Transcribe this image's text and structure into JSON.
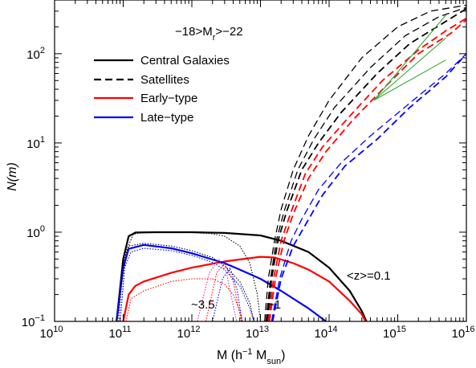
{
  "chart_data": {
    "type": "line",
    "title": "",
    "header_text": {
      "main": "−18>M",
      "sub": "r",
      "tail": ">−22"
    },
    "xlabel": {
      "main": "M (h",
      "sup": "−1",
      "mid": " M",
      "sub": "sun",
      "tail": ")"
    },
    "ylabel": {
      "main": "N",
      "paren": "(m)"
    },
    "x_scale": "log",
    "y_scale": "log",
    "xlim": [
      10000000000.0,
      1e+16
    ],
    "ylim": [
      0.1,
      400
    ],
    "x_ticks": [
      {
        "value": 10000000000.0,
        "base": "10",
        "exp": "10"
      },
      {
        "value": 100000000000.0,
        "base": "10",
        "exp": "11"
      },
      {
        "value": 1000000000000.0,
        "base": "10",
        "exp": "12"
      },
      {
        "value": 10000000000000.0,
        "base": "10",
        "exp": "13"
      },
      {
        "value": 100000000000000.0,
        "base": "10",
        "exp": "14"
      },
      {
        "value": 1000000000000000.0,
        "base": "10",
        "exp": "15"
      },
      {
        "value": 1e+16,
        "base": "10",
        "exp": "16"
      }
    ],
    "y_ticks": [
      {
        "value": 0.1,
        "base": "10",
        "exp": "−1"
      },
      {
        "value": 1,
        "base": "10",
        "exp": "0"
      },
      {
        "value": 10,
        "base": "10",
        "exp": "1"
      },
      {
        "value": 100,
        "base": "10",
        "exp": "2"
      }
    ],
    "grid": false,
    "legend_position": "top-left",
    "legend": [
      {
        "label": "Central Galaxies",
        "color": "#000000",
        "style": "solid"
      },
      {
        "label": "Satellites",
        "color": "#000000",
        "style": "dashed"
      },
      {
        "label": "Early−type",
        "color": "#ff0000",
        "style": "solid"
      },
      {
        "label": "Late−type",
        "color": "#0000ff",
        "style": "solid"
      }
    ],
    "annotations": [
      {
        "text": "<z>=0.1",
        "x": 250000000000000.0,
        "y": 0.33
      },
      {
        "text": "~3.5",
        "x": 320000000000.0,
        "y": 0.14
      },
      {
        "text": "~1",
        "x": 12500000000000.0,
        "y": 0.14
      }
    ],
    "colors": {
      "central": "#000000",
      "early": "#ff0000",
      "late": "#0000ff",
      "green": "#33aa33",
      "thin_magenta": "#cc3399"
    },
    "series": [
      {
        "type": "solid",
        "color": "#000000",
        "points": [
          [
            80000000000.0,
            0.1
          ],
          [
            100000000000.0,
            0.5
          ],
          [
            120000000000.0,
            0.9
          ],
          [
            150000000000.0,
            0.99
          ],
          [
            300000000000.0,
            1.0
          ],
          [
            1000000000000.0,
            1.0
          ],
          [
            3000000000000.0,
            0.98
          ],
          [
            10000000000000.0,
            0.92
          ],
          [
            20000000000000.0,
            0.8
          ],
          [
            50000000000000.0,
            0.6
          ],
          [
            100000000000000.0,
            0.4
          ],
          [
            200000000000000.0,
            0.22
          ],
          [
            300000000000000.0,
            0.13
          ],
          [
            350000000000000.0,
            0.1
          ]
        ]
      },
      {
        "type": "solid",
        "color": "#ff0000",
        "points": [
          [
            100000000000.0,
            0.1
          ],
          [
            120000000000.0,
            0.2
          ],
          [
            150000000000.0,
            0.25
          ],
          [
            200000000000.0,
            0.28
          ],
          [
            500000000000.0,
            0.35
          ],
          [
            1000000000000.0,
            0.4
          ],
          [
            3000000000000.0,
            0.47
          ],
          [
            10000000000000.0,
            0.53
          ],
          [
            16000000000000.0,
            0.52
          ],
          [
            30000000000000.0,
            0.45
          ],
          [
            50000000000000.0,
            0.38
          ],
          [
            100000000000000.0,
            0.28
          ],
          [
            200000000000000.0,
            0.17
          ],
          [
            300000000000000.0,
            0.12
          ],
          [
            340000000000000.0,
            0.1
          ]
        ]
      },
      {
        "type": "solid",
        "color": "#0000ff",
        "points": [
          [
            80000000000.0,
            0.1
          ],
          [
            100000000000.0,
            0.4
          ],
          [
            120000000000.0,
            0.65
          ],
          [
            200000000000.0,
            0.72
          ],
          [
            500000000000.0,
            0.66
          ],
          [
            1000000000000.0,
            0.58
          ],
          [
            3000000000000.0,
            0.45
          ],
          [
            5000000000000.0,
            0.38
          ],
          [
            10000000000000.0,
            0.3
          ],
          [
            20000000000000.0,
            0.22
          ],
          [
            50000000000000.0,
            0.14
          ],
          [
            90000000000000.0,
            0.1
          ]
        ]
      },
      {
        "type": "dotted",
        "color": "#000000",
        "points": [
          [
            90000000000.0,
            0.1
          ],
          [
            110000000000.0,
            0.6
          ],
          [
            140000000000.0,
            0.95
          ],
          [
            200000000000.0,
            0.99
          ],
          [
            500000000000.0,
            1.0
          ],
          [
            1000000000000.0,
            0.99
          ],
          [
            2000000000000.0,
            0.96
          ],
          [
            3000000000000.0,
            0.9
          ],
          [
            5000000000000.0,
            0.7
          ],
          [
            7000000000000.0,
            0.45
          ],
          [
            9000000000000.0,
            0.2
          ],
          [
            10000000000000.0,
            0.1
          ]
        ]
      },
      {
        "type": "dotted",
        "color": "#000000",
        "points": [
          [
            85000000000.0,
            0.1
          ],
          [
            100000000000.0,
            0.45
          ],
          [
            120000000000.0,
            0.7
          ],
          [
            200000000000.0,
            0.75
          ],
          [
            500000000000.0,
            0.7
          ],
          [
            1000000000000.0,
            0.62
          ],
          [
            2000000000000.0,
            0.52
          ],
          [
            3000000000000.0,
            0.42
          ],
          [
            5000000000000.0,
            0.28
          ],
          [
            7000000000000.0,
            0.16
          ],
          [
            8000000000000.0,
            0.1
          ]
        ]
      },
      {
        "type": "dotted",
        "color": "#0000ff",
        "points": [
          [
            90000000000.0,
            0.1
          ],
          [
            105000000000.0,
            0.4
          ],
          [
            130000000000.0,
            0.6
          ],
          [
            200000000000.0,
            0.66
          ],
          [
            500000000000.0,
            0.62
          ],
          [
            1000000000000.0,
            0.55
          ],
          [
            2000000000000.0,
            0.46
          ],
          [
            3000000000000.0,
            0.38
          ],
          [
            5000000000000.0,
            0.25
          ],
          [
            7000000000000.0,
            0.14
          ],
          [
            8000000000000.0,
            0.1
          ]
        ]
      },
      {
        "type": "dotted",
        "color": "#ff0000",
        "points": [
          [
            110000000000.0,
            0.1
          ],
          [
            130000000000.0,
            0.18
          ],
          [
            200000000000.0,
            0.22
          ],
          [
            500000000000.0,
            0.28
          ],
          [
            1000000000000.0,
            0.3
          ],
          [
            2000000000000.0,
            0.3
          ],
          [
            3000000000000.0,
            0.26
          ],
          [
            4000000000000.0,
            0.2
          ],
          [
            5000000000000.0,
            0.13
          ],
          [
            5500000000000.0,
            0.1
          ]
        ]
      },
      {
        "type": "dotted",
        "color": "#cc3399",
        "points": [
          [
            1200000000000.0,
            0.1
          ],
          [
            1800000000000.0,
            0.35
          ],
          [
            2500000000000.0,
            0.5
          ],
          [
            3200000000000.0,
            0.35
          ],
          [
            4000000000000.0,
            0.15
          ],
          [
            4500000000000.0,
            0.1
          ]
        ]
      },
      {
        "type": "dotted",
        "color": "#ff0000",
        "points": [
          [
            1600000000000.0,
            0.1
          ],
          [
            2300000000000.0,
            0.35
          ],
          [
            3000000000000.0,
            0.45
          ],
          [
            4000000000000.0,
            0.28
          ],
          [
            5000000000000.0,
            0.12
          ],
          [
            5300000000000.0,
            0.1
          ]
        ]
      },
      {
        "type": "dotted",
        "color": "#0000ff",
        "points": [
          [
            2000000000000.0,
            0.1
          ],
          [
            2800000000000.0,
            0.3
          ],
          [
            3600000000000.0,
            0.4
          ],
          [
            4600000000000.0,
            0.22
          ],
          [
            5400000000000.0,
            0.1
          ]
        ]
      },
      {
        "type": "dashed",
        "color": "#000000",
        "width": 1.3,
        "points": [
          [
            11500000000000.0,
            0.1
          ],
          [
            13000000000000.0,
            0.3
          ],
          [
            16000000000000.0,
            0.8
          ],
          [
            20000000000000.0,
            1.8
          ],
          [
            30000000000000.0,
            5
          ],
          [
            50000000000000.0,
            12
          ],
          [
            100000000000000.0,
            30
          ],
          [
            300000000000000.0,
            90
          ],
          [
            1000000000000000.0,
            200
          ],
          [
            3000000000000000.0,
            300
          ],
          [
            1e+16,
            350
          ]
        ]
      },
      {
        "type": "dashed",
        "color": "#000000",
        "width": 1.3,
        "points": [
          [
            12000000000000.0,
            0.1
          ],
          [
            14000000000000.0,
            0.3
          ],
          [
            17000000000000.0,
            0.8
          ],
          [
            22000000000000.0,
            1.7
          ],
          [
            35000000000000.0,
            5
          ],
          [
            60000000000000.0,
            11
          ],
          [
            120000000000000.0,
            25
          ],
          [
            400000000000000.0,
            70
          ],
          [
            1300000000000000.0,
            160
          ],
          [
            4000000000000000.0,
            260
          ],
          [
            1e+16,
            330
          ]
        ]
      },
      {
        "type": "dashed",
        "color": "#000000",
        "width": 1.8,
        "points": [
          [
            12500000000000.0,
            0.1
          ],
          [
            14500000000000.0,
            0.3
          ],
          [
            18000000000000.0,
            0.8
          ],
          [
            24000000000000.0,
            1.7
          ],
          [
            40000000000000.0,
            5
          ],
          [
            70000000000000.0,
            10
          ],
          [
            150000000000000.0,
            22
          ],
          [
            500000000000000.0,
            60
          ],
          [
            1500000000000000.0,
            130
          ],
          [
            5000000000000000.0,
            230
          ],
          [
            1e+16,
            320
          ]
        ]
      },
      {
        "type": "dashed",
        "color": "#ff0000",
        "width": 1.8,
        "points": [
          [
            13000000000000.0,
            0.1
          ],
          [
            15500000000000.0,
            0.3
          ],
          [
            20000000000000.0,
            0.8
          ],
          [
            28000000000000.0,
            1.7
          ],
          [
            45000000000000.0,
            4.5
          ],
          [
            80000000000000.0,
            9
          ],
          [
            200000000000000.0,
            20
          ],
          [
            600000000000000.0,
            50
          ],
          [
            2000000000000000.0,
            110
          ],
          [
            5000000000000000.0,
            180
          ],
          [
            1e+16,
            250
          ]
        ]
      },
      {
        "type": "dashed",
        "color": "#ff0000",
        "width": 1.8,
        "points": [
          [
            13500000000000.0,
            0.1
          ],
          [
            16500000000000.0,
            0.3
          ],
          [
            22000000000000.0,
            0.8
          ],
          [
            30000000000000.0,
            1.6
          ],
          [
            50000000000000.0,
            4
          ],
          [
            90000000000000.0,
            8
          ],
          [
            220000000000000.0,
            18
          ],
          [
            700000000000000.0,
            45
          ],
          [
            2000000000000000.0,
            100
          ],
          [
            6000000000000000.0,
            170
          ],
          [
            1e+16,
            240
          ]
        ]
      },
      {
        "type": "dashed",
        "color": "#0000ff",
        "width": 1.3,
        "points": [
          [
            14500000000000.0,
            0.1
          ],
          [
            19000000000000.0,
            0.3
          ],
          [
            28000000000000.0,
            0.8
          ],
          [
            40000000000000.0,
            1.4
          ],
          [
            70000000000000.0,
            3
          ],
          [
            150000000000000.0,
            6
          ],
          [
            400000000000000.0,
            12
          ],
          [
            1500000000000000.0,
            28
          ],
          [
            5000000000000000.0,
            60
          ],
          [
            1e+16,
            100
          ]
        ]
      },
      {
        "type": "dashed",
        "color": "#0000ff",
        "width": 1.8,
        "points": [
          [
            15000000000000.0,
            0.1
          ],
          [
            20000000000000.0,
            0.3
          ],
          [
            30000000000000.0,
            0.7
          ],
          [
            45000000000000.0,
            1.2
          ],
          [
            80000000000000.0,
            2.6
          ],
          [
            170000000000000.0,
            5.5
          ],
          [
            500000000000000.0,
            11
          ],
          [
            1500000000000000.0,
            25
          ],
          [
            5000000000000000.0,
            55
          ],
          [
            1e+16,
            100
          ]
        ]
      },
      {
        "type": "solid",
        "color": "#33aa33",
        "width": 1.1,
        "points": [
          [
            450000000000000.0,
            30
          ],
          [
            5000000000000000.0,
            270
          ]
        ]
      },
      {
        "type": "solid",
        "color": "#33aa33",
        "width": 1.1,
        "points": [
          [
            450000000000000.0,
            30
          ],
          [
            5000000000000000.0,
            150
          ]
        ]
      },
      {
        "type": "solid",
        "color": "#33aa33",
        "width": 1.1,
        "points": [
          [
            450000000000000.0,
            30
          ],
          [
            5000000000000000.0,
            85
          ]
        ]
      }
    ]
  }
}
